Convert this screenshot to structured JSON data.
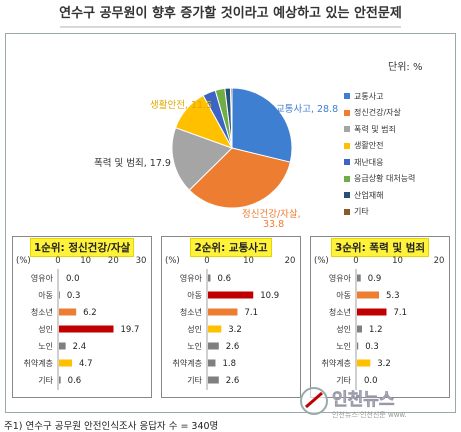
{
  "title": "연수구 공무원이 향후 증가할 것이라고 예상하고 있는 안전문제",
  "unit_label": "단위: %",
  "footnote": "주1) 연수구 공무원 안전인식조사 응답자 수 = 340명",
  "watermark_text": "인천뉴스",
  "watermark_sub": "인천뉴스·인천신문 www.",
  "colors": {
    "traffic": "#3f7fd1",
    "health": "#ed7d31",
    "violence": "#a5a5a5",
    "life": "#ffc000",
    "disaster": "#3c64c4",
    "emergency": "#70ad47",
    "industrial": "#24507a",
    "other": "#8b5a2b",
    "bar_red": "#c00000",
    "bar_orange": "#ed7d31",
    "bar_gray": "#7f7f7f",
    "bar_yellow": "#ffc000"
  },
  "chart_data": [
    {
      "type": "pie",
      "title": "",
      "legend_position": "right",
      "slices": [
        {
          "label": "교통사고",
          "value": 28.8,
          "display": "교통사고, 28.8",
          "color": "#3f7fd1"
        },
        {
          "label": "정신건강/자살",
          "value": 33.8,
          "display": "정신건강/자살,",
          "display_value": "33.8",
          "color": "#ed7d31"
        },
        {
          "label": "폭력 및 범죄",
          "value": 17.9,
          "display": "폭력 및 범죄, 17.9",
          "color": "#a5a5a5"
        },
        {
          "label": "생활안전",
          "value": 11.5,
          "display": "생활안전, 11.5",
          "color": "#ffc000"
        },
        {
          "label": "재난대응",
          "value": 3.5,
          "display": "",
          "color": "#3c64c4"
        },
        {
          "label": "응급상황 대처능력",
          "value": 2.6,
          "display": "",
          "color": "#70ad47"
        },
        {
          "label": "산업재해",
          "value": 1.5,
          "display": "",
          "color": "#24507a"
        },
        {
          "label": "기타",
          "value": 0.4,
          "display": "",
          "color": "#8b5a2b"
        }
      ],
      "legend": [
        "교통사고",
        "정신건강/자살",
        "폭력 및 범죄",
        "생활안전",
        "재난대응",
        "응급상황 대처능력",
        "산업재해",
        "기타"
      ]
    },
    {
      "type": "bar",
      "orientation": "horizontal",
      "title": "1순위: 정신건강/자살",
      "xlabel": "(%)",
      "xlim": [
        0,
        30
      ],
      "ticks": [
        "0",
        "10",
        "20",
        "30"
      ],
      "categories": [
        "영유아",
        "아동",
        "청소년",
        "성인",
        "노인",
        "취약계층",
        "기타"
      ],
      "values": [
        0.0,
        0.3,
        6.2,
        19.7,
        2.4,
        4.7,
        0.6
      ],
      "labels": [
        "0.0",
        "0.3",
        "6.2",
        "19.7",
        "2.4",
        "4.7",
        "0.6"
      ],
      "bar_colors": [
        "#7f7f7f",
        "#7f7f7f",
        "#ed7d31",
        "#c00000",
        "#7f7f7f",
        "#ffc000",
        "#7f7f7f"
      ]
    },
    {
      "type": "bar",
      "orientation": "horizontal",
      "title": "2순위: 교통사고",
      "xlabel": "(%)",
      "xlim": [
        0,
        20
      ],
      "ticks": [
        "0",
        "10",
        "20"
      ],
      "categories": [
        "영유아",
        "아동",
        "청소년",
        "성인",
        "노인",
        "취약계층",
        "기타"
      ],
      "values": [
        0.6,
        10.9,
        7.1,
        3.2,
        2.6,
        1.8,
        2.6
      ],
      "labels": [
        "0.6",
        "10.9",
        "7.1",
        "3.2",
        "2.6",
        "1.8",
        "2.6"
      ],
      "bar_colors": [
        "#7f7f7f",
        "#c00000",
        "#ed7d31",
        "#ffc000",
        "#7f7f7f",
        "#7f7f7f",
        "#7f7f7f"
      ]
    },
    {
      "type": "bar",
      "orientation": "horizontal",
      "title": "3순위: 폭력 및 범죄",
      "xlabel": "(%)",
      "xlim": [
        0,
        20
      ],
      "ticks": [
        "0",
        "10",
        "20"
      ],
      "categories": [
        "영유아",
        "아동",
        "청소년",
        "성인",
        "노인",
        "취약계층",
        "기타"
      ],
      "values": [
        0.9,
        5.3,
        7.1,
        1.2,
        0.3,
        3.2,
        0.0
      ],
      "labels": [
        "0.9",
        "5.3",
        "7.1",
        "1.2",
        "0.3",
        "3.2",
        "0.0"
      ],
      "bar_colors": [
        "#7f7f7f",
        "#ed7d31",
        "#c00000",
        "#7f7f7f",
        "#7f7f7f",
        "#ffc000",
        "#7f7f7f"
      ]
    }
  ]
}
